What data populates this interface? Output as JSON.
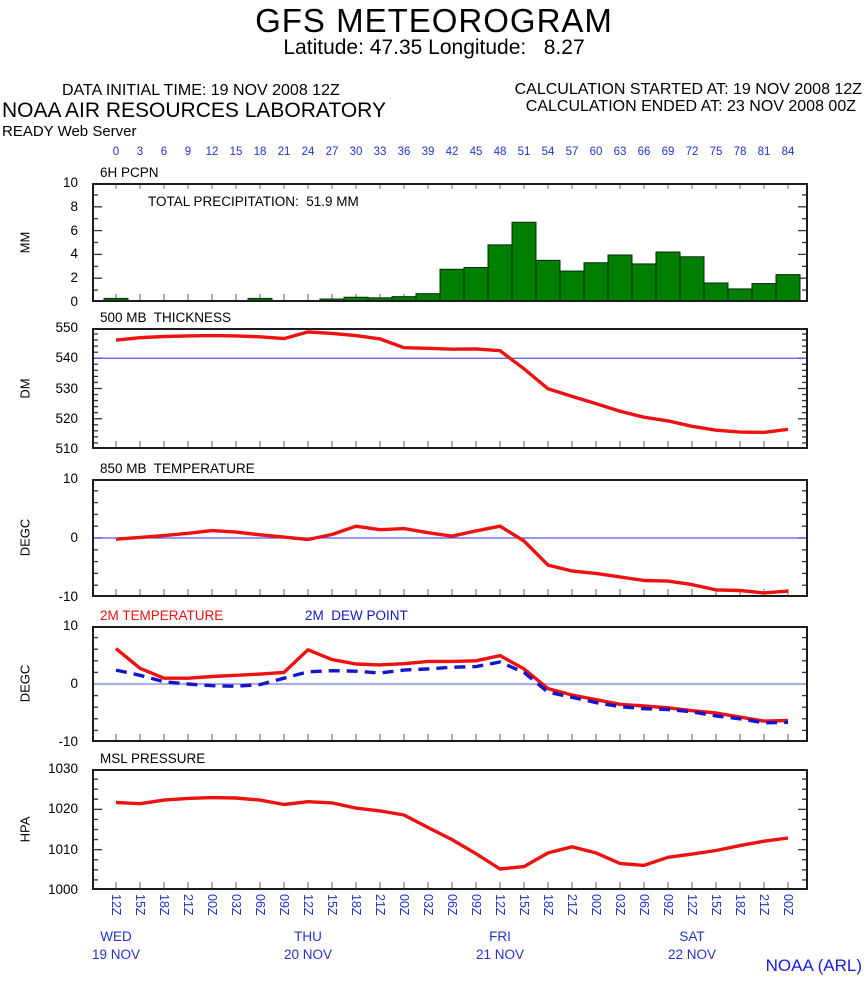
{
  "header": {
    "title": "GFS METEOROGRAM",
    "subtitle": "Latitude: 47.35 Longitude:   8.27",
    "data_initial_time": "DATA INITIAL TIME: 19 NOV 2008 12Z",
    "organization": "NOAA AIR RESOURCES LABORATORY",
    "server": "READY Web Server",
    "calc_started": "CALCULATION STARTED AT: 19 NOV 2008 12Z",
    "calc_ended": "CALCULATION ENDED AT: 23 NOV 2008 00Z"
  },
  "footer": {
    "credit": "NOAA (ARL)"
  },
  "colors": {
    "label_blue": "#2233cc",
    "line_red": "#ee1111",
    "dew_blue": "#1515cc",
    "bar_green": "#007f00",
    "ref_blue": "#5858e8",
    "ref_blue_light": "#aab0ea",
    "frame": "#1c1c1c",
    "x_tick": "#8c8c8c",
    "y_tick": "#333333"
  },
  "top_axis": {
    "hours": [
      0,
      3,
      6,
      9,
      12,
      15,
      18,
      21,
      24,
      27,
      30,
      33,
      36,
      39,
      42,
      45,
      48,
      51,
      54,
      57,
      60,
      63,
      66,
      69,
      72,
      75,
      78,
      81,
      84
    ]
  },
  "bottom_axis": {
    "time_labels": [
      "12Z",
      "15Z",
      "18Z",
      "21Z",
      "00Z",
      "03Z",
      "06Z",
      "09Z",
      "12Z",
      "15Z",
      "18Z",
      "21Z",
      "00Z",
      "03Z",
      "06Z",
      "09Z",
      "12Z",
      "15Z",
      "18Z",
      "21Z",
      "00Z",
      "03Z",
      "06Z",
      "09Z",
      "12Z",
      "15Z",
      "18Z",
      "21Z",
      "00Z"
    ],
    "days": [
      {
        "label": "WED",
        "date": "19 NOV",
        "hour": 0
      },
      {
        "label": "THU",
        "date": "20 NOV",
        "hour": 24
      },
      {
        "label": "FRI",
        "date": "21 NOV",
        "hour": 48
      },
      {
        "label": "SAT",
        "date": "22 NOV",
        "hour": 72
      }
    ]
  },
  "chart_data": [
    {
      "id": "6h-pcpn",
      "type": "bar",
      "titles": [
        {
          "text": "6H PCPN",
          "color": "#000000",
          "x": 100
        }
      ],
      "annotation": "TOTAL PRECIPITATION:  51.9 MM",
      "unit": "MM",
      "ylim": [
        0,
        10
      ],
      "yticks": [
        0,
        2,
        4,
        6,
        8,
        10
      ],
      "minor_step": 1,
      "top_ticks": true,
      "ref_line": null,
      "hours": [
        0,
        3,
        6,
        9,
        12,
        15,
        18,
        21,
        24,
        27,
        30,
        33,
        36,
        39,
        42,
        45,
        48,
        51,
        54,
        57,
        60,
        63,
        66,
        69,
        72,
        75,
        78,
        81,
        84
      ],
      "values": [
        0.3,
        0,
        0,
        0,
        0,
        0,
        0.3,
        0,
        0,
        0.25,
        0.4,
        0.35,
        0.45,
        0.7,
        2.75,
        2.9,
        4.8,
        6.7,
        3.5,
        2.6,
        3.3,
        3.95,
        3.2,
        4.2,
        3.8,
        1.6,
        1.1,
        1.55,
        2.3
      ],
      "bar_color": "#007f00"
    },
    {
      "id": "500mb-thickness",
      "type": "line",
      "titles": [
        {
          "text": "500 MB  THICKNESS",
          "color": "#000000",
          "x": 100
        }
      ],
      "annotation": null,
      "unit": "DM",
      "ylim": [
        510,
        550
      ],
      "yticks": [
        510,
        520,
        530,
        540,
        550
      ],
      "minor_step": 2,
      "top_ticks": false,
      "ref_line": {
        "value": 540,
        "color": "#5858e8",
        "width": 1.2
      },
      "hours": [
        0,
        3,
        6,
        9,
        12,
        15,
        18,
        21,
        24,
        27,
        30,
        33,
        36,
        39,
        42,
        45,
        48,
        51,
        54,
        57,
        60,
        63,
        66,
        69,
        72,
        75,
        78,
        81,
        84
      ],
      "series": [
        {
          "name": "500 MB THICKNESS",
          "color": "#ee1111",
          "dash": null,
          "values": [
            546.0,
            546.8,
            547.2,
            547.4,
            547.5,
            547.4,
            547.1,
            546.5,
            548.7,
            548.2,
            547.5,
            546.4,
            543.5,
            543.3,
            543.0,
            543.1,
            542.5,
            536.5,
            529.9,
            527.4,
            525.0,
            522.5,
            520.5,
            519.3,
            517.5,
            516.2,
            515.6,
            515.5,
            516.5
          ]
        }
      ]
    },
    {
      "id": "850mb-temperature",
      "type": "line",
      "titles": [
        {
          "text": "850 MB  TEMPERATURE",
          "color": "#000000",
          "x": 100
        }
      ],
      "annotation": null,
      "unit": "DEGC",
      "ylim": [
        -10,
        10
      ],
      "yticks": [
        -10,
        0,
        10
      ],
      "minor_step": 2,
      "top_ticks": false,
      "ref_line": {
        "value": 0,
        "color": "#5858e8",
        "width": 1.2
      },
      "hours": [
        0,
        3,
        6,
        9,
        12,
        15,
        18,
        21,
        24,
        27,
        30,
        33,
        36,
        39,
        42,
        45,
        48,
        51,
        54,
        57,
        60,
        63,
        66,
        69,
        72,
        75,
        78,
        81,
        84
      ],
      "series": [
        {
          "name": "850 MB TEMPERATURE",
          "color": "#ee1111",
          "dash": null,
          "values": [
            -0.2,
            0.1,
            0.4,
            0.8,
            1.25,
            1.0,
            0.55,
            0.15,
            -0.25,
            0.6,
            2.0,
            1.4,
            1.6,
            0.9,
            0.3,
            1.2,
            2.0,
            -0.5,
            -4.6,
            -5.6,
            -6.0,
            -6.6,
            -7.2,
            -7.3,
            -7.9,
            -8.8,
            -8.9,
            -9.3,
            -9.0
          ]
        }
      ]
    },
    {
      "id": "2m-temp-dewpoint",
      "type": "line",
      "titles": [
        {
          "text": "2M TEMPERATURE",
          "color": "#ee1111",
          "x": 100
        },
        {
          "text": "2M  DEW POINT",
          "color": "#1515cc",
          "x": 305
        }
      ],
      "annotation": null,
      "unit": "DEGC",
      "ylim": [
        -10,
        10
      ],
      "yticks": [
        -10,
        0,
        10
      ],
      "minor_step": 2,
      "top_ticks": false,
      "ref_line": {
        "value": 0,
        "color": "#aab0ea",
        "width": 2.2
      },
      "hours": [
        0,
        3,
        6,
        9,
        12,
        15,
        18,
        21,
        24,
        27,
        30,
        33,
        36,
        39,
        42,
        45,
        48,
        51,
        54,
        57,
        60,
        63,
        66,
        69,
        72,
        75,
        78,
        81,
        84
      ],
      "series": [
        {
          "name": "2M TEMPERATURE",
          "color": "#ee1111",
          "dash": null,
          "values": [
            6.1,
            2.7,
            1.0,
            1.0,
            1.3,
            1.5,
            1.7,
            2.0,
            5.9,
            4.2,
            3.45,
            3.3,
            3.5,
            3.9,
            3.9,
            4.0,
            4.9,
            2.6,
            -0.8,
            -1.9,
            -2.7,
            -3.5,
            -3.8,
            -4.1,
            -4.6,
            -5.0,
            -5.7,
            -6.4,
            -6.3
          ]
        },
        {
          "name": "2M DEW POINT",
          "color": "#1515cc",
          "dash": "11 7",
          "values": [
            2.4,
            1.5,
            0.4,
            0.0,
            -0.3,
            -0.4,
            -0.1,
            1.0,
            2.1,
            2.3,
            2.2,
            1.9,
            2.4,
            2.6,
            2.9,
            3.0,
            3.8,
            2.0,
            -1.4,
            -2.3,
            -3.2,
            -3.9,
            -4.25,
            -4.4,
            -4.8,
            -5.5,
            -6.0,
            -6.7,
            -6.6
          ]
        }
      ]
    },
    {
      "id": "msl-pressure",
      "type": "line",
      "titles": [
        {
          "text": "MSL PRESSURE",
          "color": "#000000",
          "x": 100
        }
      ],
      "annotation": null,
      "unit": "HPA",
      "ylim": [
        1000,
        1030
      ],
      "yticks": [
        1000,
        1010,
        1020,
        1030
      ],
      "minor_step": 2.5,
      "top_ticks": false,
      "ref_line": null,
      "hours": [
        0,
        3,
        6,
        9,
        12,
        15,
        18,
        21,
        24,
        27,
        30,
        33,
        36,
        39,
        42,
        45,
        48,
        51,
        54,
        57,
        60,
        63,
        66,
        69,
        72,
        75,
        78,
        81,
        84
      ],
      "series": [
        {
          "name": "MSL PRESSURE",
          "color": "#ee1111",
          "dash": null,
          "values": [
            1021.7,
            1021.4,
            1022.3,
            1022.7,
            1022.9,
            1022.8,
            1022.3,
            1021.2,
            1021.9,
            1021.6,
            1020.3,
            1019.6,
            1018.6,
            1015.5,
            1012.5,
            1009.0,
            1005.2,
            1005.8,
            1009.2,
            1010.7,
            1009.2,
            1006.6,
            1006.1,
            1008.1,
            1008.9,
            1009.8,
            1011.0,
            1012.1,
            1012.9
          ]
        }
      ]
    }
  ]
}
